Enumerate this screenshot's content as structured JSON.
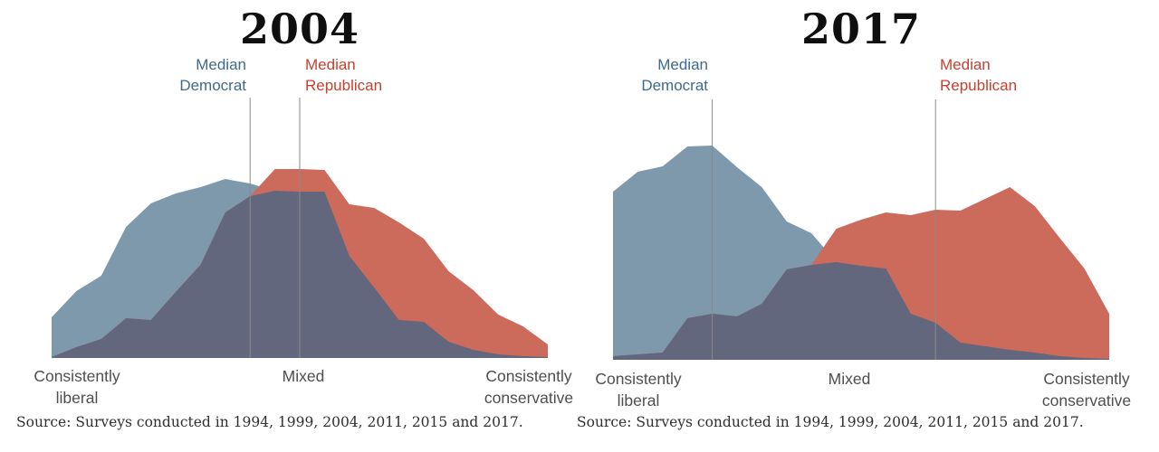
{
  "page": {
    "background": "#ffffff"
  },
  "colors": {
    "democrat_fill": "#7E99AB",
    "republican_fill": "#CC6A5C",
    "overlap_fill": "#63677D",
    "median_line": "#8A8A8A",
    "democrat_text": "#3C6A8F",
    "republican_text": "#C5402E",
    "axis_text": "#4E4E4E",
    "title_text": "#0F0F0F",
    "source_text": "#2F2F2F"
  },
  "chart_data": [
    {
      "type": "area",
      "title": "2004",
      "x_scale": {
        "description": "ideological consistency score, 21 bins from most liberal to most conservative",
        "range": [
          -10,
          10
        ],
        "points": 21,
        "label_left": [
          "Consistently",
          "liberal"
        ],
        "label_center": [
          "Mixed",
          ""
        ],
        "label_right": [
          "Consistently",
          "conservative"
        ]
      },
      "y_axis": "none shown (relative share of party, arbitrary units)",
      "series": [
        {
          "name": "Democrat",
          "values": [
            45,
            74,
            91,
            145,
            171,
            182,
            189,
            198,
            193,
            185,
            184,
            184,
            113,
            78,
            42,
            40,
            18,
            9,
            4,
            2,
            1
          ]
        },
        {
          "name": "Republican",
          "values": [
            1,
            12,
            21,
            44,
            42,
            73,
            103,
            161,
            179,
            209,
            209,
            208,
            170,
            166,
            150,
            132,
            96,
            75,
            48,
            35,
            15
          ]
        }
      ],
      "medians": {
        "dem": {
          "index": 8,
          "score": -2,
          "label": [
            "Median",
            "Democrat"
          ]
        },
        "rep": {
          "index": 10,
          "score": 0,
          "label": [
            "Median",
            "Republican"
          ]
        }
      },
      "source": "Source: Surveys conducted in 1994, 1999, 2004, 2011, 2015 and 2017.",
      "legend": "off"
    },
    {
      "type": "area",
      "title": "2017",
      "x_scale": {
        "description": "ideological consistency score, 21 bins from most liberal to most conservative",
        "range": [
          -10,
          10
        ],
        "points": 21,
        "label_left": [
          "Consistently",
          "liberal"
        ],
        "label_center": [
          "Mixed",
          ""
        ],
        "label_right": [
          "Consistently",
          "conservative"
        ]
      },
      "y_axis": "none shown (relative share of party, arbitrary units)",
      "series": [
        {
          "name": "Democrat",
          "values": [
            186,
            208,
            214,
            236,
            237,
            213,
            191,
            153,
            140,
            108,
            104,
            101,
            51,
            41,
            19,
            15,
            11,
            8,
            4,
            2,
            1
          ]
        },
        {
          "name": "Republican",
          "values": [
            4,
            6,
            8,
            46,
            51,
            48,
            62,
            100,
            105,
            145,
            155,
            163,
            160,
            166,
            165,
            178,
            191,
            170,
            135,
            101,
            51
          ]
        }
      ],
      "medians": {
        "dem": {
          "index": 4,
          "score": -6,
          "label": [
            "Median",
            "Democrat"
          ]
        },
        "rep": {
          "index": 13,
          "score": 3,
          "label": [
            "Median",
            "Republican"
          ]
        }
      },
      "source": "Source: Surveys conducted in 1994, 1999, 2004, 2011, 2015 and 2017.",
      "legend": "off"
    }
  ]
}
